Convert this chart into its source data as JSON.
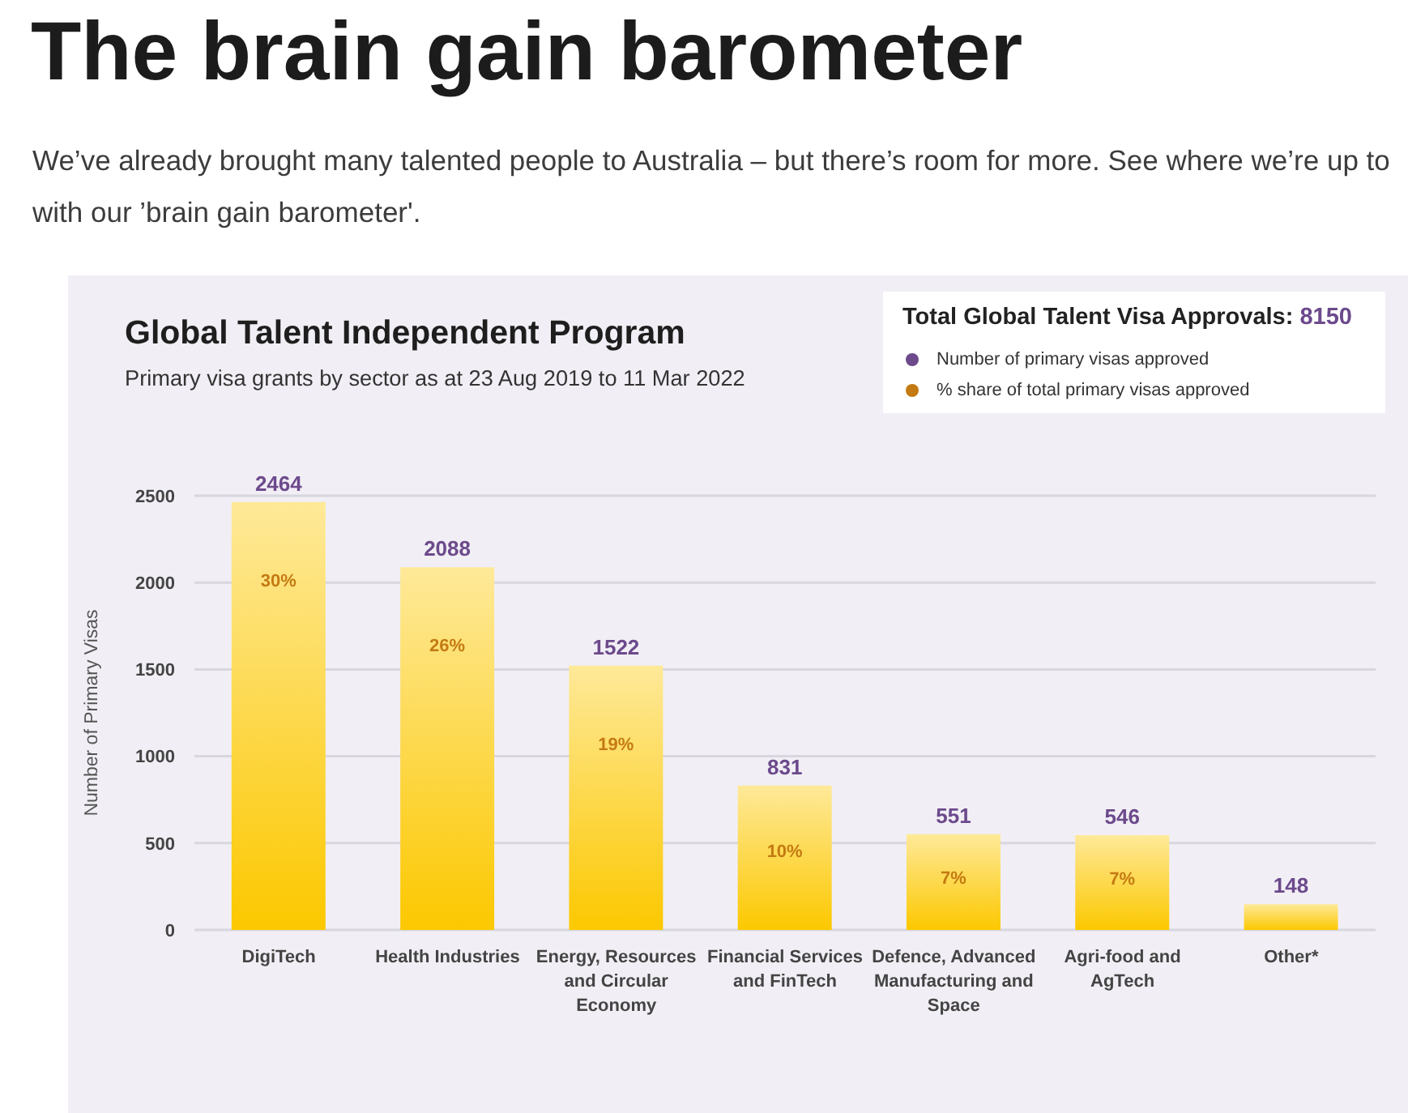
{
  "chart_data": {
    "type": "bar",
    "title": "Global Talent Independent Program",
    "subtitle": "Primary visa grants by sector as at 23 Aug 2019 to 11 Mar 2022",
    "ylabel": "Number of Primary Visas",
    "legend_title": "Total Global Talent Visa Approvals: 8150",
    "annotations": [
      "The brain gain barometer",
      "We’ve already brought many talented people to Australia – but there’s room for more. See where we’re up to with our ’brain gain barometer'.",
      "Number of primary visas approved",
      "% share of total primary visas approved",
      "30%",
      "26%",
      "19%",
      "10%",
      "7%",
      "7%"
    ],
    "categories": [
      "DigiTech",
      "Health Industries",
      "Energy, Resources and Circular Economy",
      "Financial Services and FinTech",
      "Defence, Advanced Manufacturing and Space",
      "Agri-food and AgTech",
      "Other*"
    ],
    "values": [
      2464,
      2088,
      1522,
      831,
      551,
      546,
      148
    ],
    "color": "#fcc800",
    "data_labels": true,
    "ylim": [
      0,
      2500
    ],
    "yticks": [
      0,
      500,
      1000,
      1500,
      2000,
      2500
    ],
    "grid": "y"
  }
}
